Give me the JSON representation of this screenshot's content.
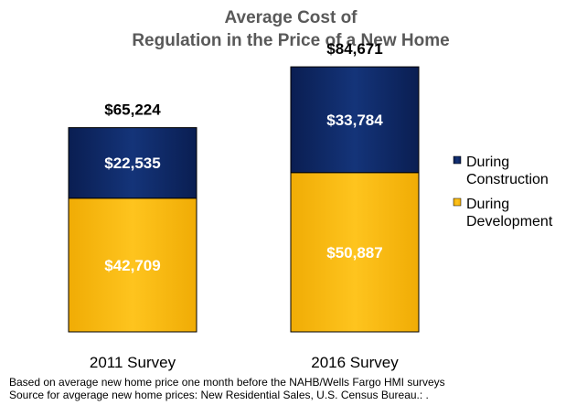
{
  "chart_data": {
    "type": "bar",
    "stacked": true,
    "title": [
      "Average Cost of",
      "Regulation in the Price of a New Home"
    ],
    "categories": [
      "2011 Survey",
      "2016 Survey"
    ],
    "series": [
      {
        "name": "During Development",
        "values": [
          42709,
          50887
        ],
        "labels": [
          "$42,709",
          "$50,887"
        ],
        "color": "#FDBB11"
      },
      {
        "name": "During Construction",
        "values": [
          22535,
          33784
        ],
        "labels": [
          "$22,535",
          "$33,784"
        ],
        "color": "#0F2A6B"
      }
    ],
    "totals": [
      65224,
      84671
    ],
    "total_labels": [
      "$65,224",
      "$84,671"
    ],
    "legend": {
      "position": "right",
      "entries": [
        {
          "lines": [
            "During",
            "Construction"
          ],
          "color": "#0F2A6B"
        },
        {
          "lines": [
            "During",
            "Development"
          ],
          "color": "#FDBB11"
        }
      ]
    },
    "ylim": [
      0,
      92000
    ],
    "grid": false,
    "xlabel": "",
    "ylabel": ""
  },
  "footnotes": [
    "Based on average  new home price one month before the NAHB/Wells Fargo HMI surveys",
    "Source for avgerage  new home prices: New Residential Sales, U.S. Census Bureau.: ."
  ]
}
